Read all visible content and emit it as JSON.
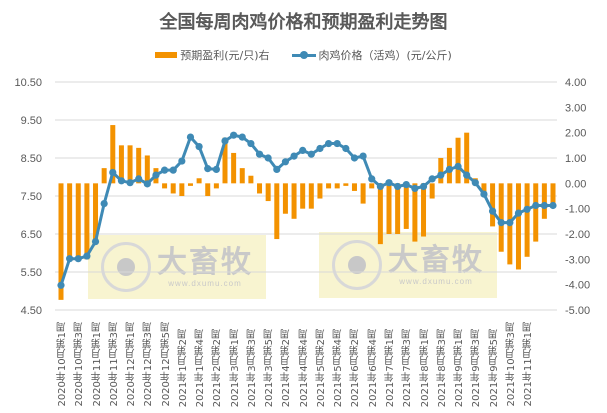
{
  "chart_data": {
    "type": "bar+line",
    "title": "全国每周肉鸡价格和预期盈利走势图",
    "legend": [
      "预期盈利(元/只)右",
      "肉鸡价格（活鸡）(元/公斤)"
    ],
    "left_axis": {
      "ticks": [
        "10.50",
        "9.50",
        "8.50",
        "7.50",
        "6.50",
        "5.50",
        "4.50"
      ],
      "ylim": [
        4.5,
        10.5
      ]
    },
    "right_axis": {
      "ticks": [
        "4.00",
        "3.00",
        "2.00",
        "1.00",
        "0.00",
        "-1.00",
        "-2.00",
        "-3.00",
        "-4.00",
        "-5.00"
      ],
      "ylim": [
        -5,
        4
      ]
    },
    "x_labels": [
      "2020年10月第1周",
      "2020年10月第3周",
      "2020年11月第1周",
      "2020年11月第3周",
      "2020年12月第1周",
      "2020年12月第3周",
      "2020年12月第5周",
      "2021年1月第2周",
      "2021年1月第4周",
      "2021年2月第2周",
      "2021年3月第1周",
      "2021年3月第3周",
      "2021年3月第5周",
      "2021年4月第2周",
      "2021年4月第4周",
      "2021年5月第2周",
      "2021年5月第4周",
      "2021年6月第2周",
      "2021年6月第4周",
      "2021年7月第1周",
      "2021年7月第3周",
      "2021年8月第1周",
      "2021年8月第3周",
      "2021年9月第1周",
      "2021年9月第3周",
      "2021年9月第5周",
      "2021年10月第3周",
      "2021年11月第1周"
    ],
    "series": [
      {
        "name": "预期盈利(元/只)右",
        "type": "bar",
        "color": "#F39200",
        "axis": "right",
        "values": [
          -4.6,
          -3.0,
          -3.0,
          -3.0,
          -2.2,
          0.6,
          2.3,
          1.5,
          1.5,
          1.4,
          1.1,
          0.6,
          -0.2,
          -0.4,
          -0.5,
          -0.1,
          0.2,
          -0.5,
          -0.2,
          1.8,
          1.2,
          0.6,
          0.3,
          -0.4,
          -0.7,
          -2.2,
          -1.2,
          -1.4,
          -1.0,
          -1.0,
          -0.6,
          -0.2,
          -0.2,
          -0.1,
          -0.3,
          -0.8,
          -0.2,
          -2.4,
          -2.0,
          -2.0,
          -1.8,
          -2.3,
          -2.1,
          -0.6,
          1.0,
          1.4,
          1.8,
          2.0,
          0.2,
          -0.4,
          -1.7,
          -2.7,
          -3.2,
          -3.4,
          -2.9,
          -2.3,
          -1.4,
          -0.8
        ]
      },
      {
        "name": "肉鸡价格（活鸡）(元/公斤)",
        "type": "line",
        "color": "#3F8AB5",
        "axis": "left",
        "values": [
          5.15,
          5.85,
          5.85,
          5.92,
          6.3,
          7.3,
          8.12,
          7.9,
          7.85,
          7.95,
          7.82,
          8.05,
          8.18,
          8.18,
          8.42,
          9.05,
          8.8,
          8.22,
          8.2,
          8.95,
          9.1,
          9.05,
          8.88,
          8.6,
          8.5,
          8.2,
          8.4,
          8.55,
          8.7,
          8.6,
          8.75,
          8.88,
          8.88,
          8.75,
          8.5,
          8.55,
          7.95,
          7.75,
          7.85,
          7.75,
          7.8,
          7.7,
          7.75,
          7.95,
          8.05,
          8.2,
          8.28,
          8.05,
          7.85,
          7.55,
          7.1,
          6.8,
          6.8,
          7.05,
          7.15,
          7.25,
          7.25,
          7.25
        ]
      }
    ],
    "grid": true
  },
  "watermark": {
    "cn": "大畜牧",
    "url": "www.dxumu.com"
  }
}
